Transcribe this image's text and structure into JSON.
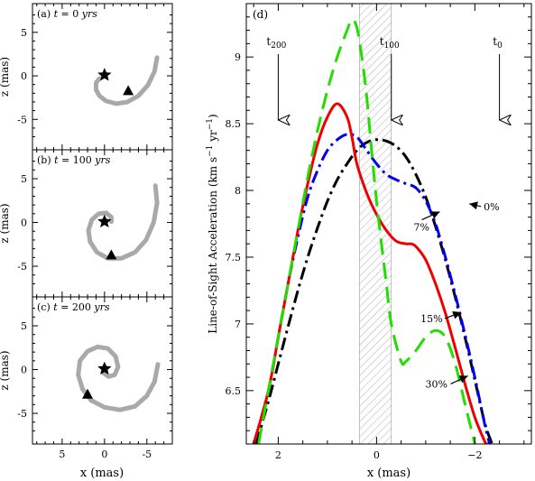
{
  "chart_data": [
    {
      "panel_label": "(a)",
      "t_label": "t",
      "t_value": "= 0",
      "t_unit": "yrs",
      "type": "scatter",
      "xlabel": "",
      "ylabel": "z (mas)",
      "xlim": [
        8.5,
        -8.0
      ],
      "ylim": [
        -8.5,
        8.3
      ],
      "yticks": [
        5,
        0,
        -5
      ],
      "yticklabels": [
        "5",
        "0",
        "-5"
      ],
      "xticks": [
        5,
        0,
        -5
      ],
      "xticklabels": [],
      "spiral_color": "#a9a9a9",
      "spiral": [
        [
          -6.2,
          2.1
        ],
        [
          -5.9,
          0.5
        ],
        [
          -5.1,
          -1.1
        ],
        [
          -4.0,
          -2.3
        ],
        [
          -2.7,
          -3.0
        ],
        [
          -1.4,
          -3.2
        ],
        [
          -0.2,
          -2.9
        ],
        [
          0.6,
          -2.3
        ],
        [
          1.0,
          -1.6
        ],
        [
          1.0,
          -0.8
        ],
        [
          0.6,
          -0.3
        ]
      ],
      "star": [
        0,
        0.1
      ],
      "triangle": [
        -2.8,
        -1.7
      ]
    },
    {
      "panel_label": "(b)",
      "t_label": "t",
      "t_value": "= 100",
      "t_unit": "yrs",
      "type": "scatter",
      "xlabel": "",
      "ylabel": "z (mas)",
      "xlim": [
        8.5,
        -8.0
      ],
      "ylim": [
        -8.5,
        8.3
      ],
      "yticks": [
        5,
        0,
        -5
      ],
      "yticklabels": [
        "5",
        "0",
        "-5"
      ],
      "xticks": [
        5,
        0,
        -5
      ],
      "xticklabels": [],
      "spiral_color": "#a9a9a9",
      "spiral": [
        [
          -6.0,
          4.2
        ],
        [
          -6.2,
          2.2
        ],
        [
          -5.8,
          0.0
        ],
        [
          -4.9,
          -2.0
        ],
        [
          -3.6,
          -3.4
        ],
        [
          -2.0,
          -4.1
        ],
        [
          -0.4,
          -4.1
        ],
        [
          0.9,
          -3.4
        ],
        [
          1.7,
          -2.2
        ],
        [
          1.9,
          -0.9
        ],
        [
          1.5,
          0.3
        ],
        [
          0.7,
          1.0
        ],
        [
          -0.2,
          1.1
        ],
        [
          -0.8,
          0.6
        ],
        [
          -0.8,
          0.1
        ]
      ],
      "star": [
        0,
        0.1
      ],
      "triangle": [
        -0.8,
        -3.7
      ]
    },
    {
      "panel_label": "(c)",
      "t_label": "t",
      "t_value": "= 200",
      "t_unit": "yrs",
      "type": "scatter",
      "xlabel": "x (mas)",
      "ylabel": "z (mas)",
      "xlim": [
        8.5,
        -8.0
      ],
      "ylim": [
        -8.5,
        8.3
      ],
      "yticks": [
        5,
        0,
        -5
      ],
      "yticklabels": [
        "5",
        "0",
        "-5"
      ],
      "xticks": [
        5,
        0,
        -5
      ],
      "xticklabels": [
        "5",
        "0",
        "-5"
      ],
      "spiral_color": "#a9a9a9",
      "spiral": [
        [
          -6.3,
          0.6
        ],
        [
          -5.9,
          -1.4
        ],
        [
          -5.0,
          -3.0
        ],
        [
          -3.6,
          -4.2
        ],
        [
          -1.8,
          -4.6
        ],
        [
          0.0,
          -4.3
        ],
        [
          1.6,
          -3.5
        ],
        [
          2.6,
          -2.2
        ],
        [
          3.1,
          -0.6
        ],
        [
          2.9,
          1.0
        ],
        [
          2.0,
          2.1
        ],
        [
          0.8,
          2.6
        ],
        [
          -0.4,
          2.4
        ],
        [
          -1.3,
          1.5
        ],
        [
          -1.6,
          0.3
        ],
        [
          -1.2,
          -0.6
        ],
        [
          -0.5,
          -0.8
        ],
        [
          0.1,
          -0.4
        ]
      ],
      "star": [
        0,
        0.1
      ],
      "triangle": [
        2.0,
        -2.8
      ]
    },
    {
      "panel_label": "(d)",
      "type": "line",
      "xlabel": "x (mas)",
      "ylabel": "Line-of-Sight Acceleration (km s",
      "ylabel_sup1": "−1",
      "ylabel_mid": " yr",
      "ylabel_sup2": "−1",
      "ylabel_end": ")",
      "xlim": [
        2.65,
        -3.15
      ],
      "ylim": [
        6.1,
        9.4
      ],
      "xticks": [
        2,
        0,
        -2
      ],
      "xticklabels": [
        "2",
        "0",
        "−2"
      ],
      "yticks": [
        6.5,
        7,
        7.5,
        8,
        8.5,
        9
      ],
      "yticklabels": [
        "6.5",
        "7",
        "7.5",
        "8",
        "8.5",
        "9"
      ],
      "shaded_region": [
        0.35,
        -0.3
      ],
      "times": [
        {
          "label": "t",
          "sub": "200",
          "x": 2.0
        },
        {
          "label": "t",
          "sub": "100",
          "x": -0.3
        },
        {
          "label": "t",
          "sub": "0",
          "x": -2.5
        }
      ],
      "series": [
        {
          "name": "0%",
          "color": "#000000",
          "dash": "dashdot",
          "x": [
            2.45,
            2.2,
            2.0,
            1.8,
            1.6,
            1.4,
            1.2,
            1.0,
            0.8,
            0.6,
            0.4,
            0.2,
            0.0,
            -0.2,
            -0.4,
            -0.6,
            -0.8,
            -1.0,
            -1.2,
            -1.4,
            -1.6,
            -1.8,
            -2.0,
            -2.2,
            -2.35
          ],
          "y": [
            6.1,
            6.42,
            6.7,
            6.98,
            7.25,
            7.5,
            7.72,
            7.92,
            8.08,
            8.2,
            8.3,
            8.36,
            8.38,
            8.37,
            8.33,
            8.25,
            8.12,
            7.95,
            7.73,
            7.48,
            7.2,
            6.9,
            6.58,
            6.26,
            6.1
          ]
        },
        {
          "name": "7%",
          "color": "#0000ee",
          "dash": "dashdot",
          "x": [
            2.5,
            2.2,
            2.0,
            1.8,
            1.6,
            1.4,
            1.2,
            1.0,
            0.8,
            0.6,
            0.4,
            0.2,
            0.0,
            -0.2,
            -0.4,
            -0.6,
            -0.8,
            -1.0,
            -1.2,
            -1.4,
            -1.6,
            -1.8,
            -2.0,
            -2.2,
            -2.3
          ],
          "y": [
            6.1,
            6.5,
            6.9,
            7.3,
            7.65,
            7.95,
            8.15,
            8.3,
            8.38,
            8.42,
            8.4,
            8.3,
            8.2,
            8.12,
            8.08,
            8.05,
            8.02,
            7.92,
            7.75,
            7.5,
            7.22,
            6.92,
            6.6,
            6.25,
            6.1
          ]
        },
        {
          "name": "15%",
          "color": "#ee0000",
          "dash": "solid",
          "x": [
            2.5,
            2.2,
            2.0,
            1.8,
            1.6,
            1.4,
            1.2,
            1.0,
            0.8,
            0.6,
            0.5,
            0.4,
            0.2,
            0.0,
            -0.2,
            -0.4,
            -0.6,
            -0.7,
            -0.8,
            -1.0,
            -1.2,
            -1.4,
            -1.6,
            -1.8,
            -2.0,
            -2.2,
            -2.25
          ],
          "y": [
            6.1,
            6.5,
            6.9,
            7.3,
            7.7,
            8.05,
            8.35,
            8.55,
            8.65,
            8.55,
            8.4,
            8.2,
            7.98,
            7.82,
            7.7,
            7.62,
            7.6,
            7.6,
            7.58,
            7.48,
            7.3,
            7.08,
            6.82,
            6.55,
            6.3,
            6.12,
            6.1
          ]
        },
        {
          "name": "30%",
          "color": "#22dd00",
          "dash": "dash",
          "x": [
            2.4,
            2.2,
            2.0,
            1.8,
            1.6,
            1.4,
            1.2,
            1.0,
            0.8,
            0.6,
            0.5,
            0.4,
            0.3,
            0.2,
            0.1,
            0.0,
            -0.1,
            -0.2,
            -0.3,
            -0.5,
            -0.6,
            -0.8,
            -1.0,
            -1.2,
            -1.4,
            -1.6,
            -1.8,
            -2.0
          ],
          "y": [
            6.1,
            6.5,
            6.9,
            7.3,
            7.7,
            8.1,
            8.45,
            8.75,
            9.0,
            9.2,
            9.28,
            9.22,
            9.0,
            8.7,
            8.3,
            7.92,
            7.6,
            7.3,
            7.0,
            6.72,
            6.72,
            6.8,
            6.9,
            6.95,
            6.9,
            6.7,
            6.4,
            6.1
          ]
        }
      ],
      "annotations": [
        {
          "text": "0%",
          "data_x": -1.85,
          "data_y": 7.88
        },
        {
          "text": "7%",
          "data_x": -1.25,
          "data_y": 7.8
        },
        {
          "text": "15%",
          "data_x": -1.5,
          "data_y": 7.04
        },
        {
          "text": "30%",
          "data_x": -1.6,
          "data_y": 6.55
        }
      ]
    }
  ]
}
